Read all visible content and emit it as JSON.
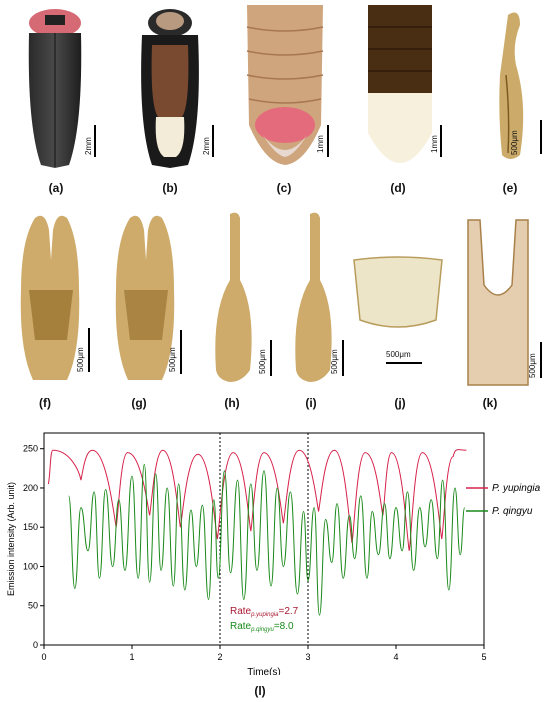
{
  "panels": {
    "a": {
      "label": "(a)",
      "scale": "2mm"
    },
    "b": {
      "label": "(b)",
      "scale": "2mm"
    },
    "c": {
      "label": "(c)",
      "scale": "1mm"
    },
    "d": {
      "label": "(d)",
      "scale": "1mm"
    },
    "e": {
      "label": "(e)",
      "scale": "500μm"
    },
    "f": {
      "label": "(f)",
      "scale": "500μm"
    },
    "g": {
      "label": "(g)",
      "scale": "500μm"
    },
    "h": {
      "label": "(h)",
      "scale": "500μm"
    },
    "i": {
      "label": "(i)",
      "scale": "500μm"
    },
    "j": {
      "label": "(j)",
      "scale": "500μm"
    },
    "k": {
      "label": "(k)",
      "scale": "500μm"
    },
    "l": {
      "label": "(l)"
    }
  },
  "colors": {
    "yupingia": "#d6224a",
    "qingyu": "#1a8a1a"
  },
  "chart_data": {
    "type": "line",
    "xlabel": "Time(s)",
    "ylabel": "Emission intensity (Arb. unit)",
    "xlim": [
      0,
      5
    ],
    "ylim": [
      0,
      270
    ],
    "xticks": [
      0,
      1,
      2,
      3,
      4,
      5
    ],
    "yticks": [
      0,
      50,
      100,
      150,
      200,
      250
    ],
    "vlines": [
      2,
      3
    ],
    "legend": "right",
    "series": [
      {
        "name": "P. yupingia",
        "legend_italic": "P. yupingia",
        "color": "#d6224a",
        "peak_times": [
          0.1,
          0.55,
          0.95,
          1.35,
          1.75,
          2.15,
          2.5,
          2.9,
          3.3,
          3.65,
          3.95,
          4.3,
          4.65,
          4.8
        ],
        "min_times": [
          0.42,
          0.82,
          1.2,
          1.55,
          1.97,
          2.35,
          2.72,
          3.12,
          3.5,
          3.85,
          4.15,
          4.52
        ],
        "min_values": [
          210,
          150,
          165,
          150,
          135,
          145,
          155,
          170,
          130,
          165,
          120,
          135
        ],
        "peak_values": [
          248,
          248,
          245,
          248,
          243,
          245,
          245,
          248,
          248,
          245,
          245,
          245,
          240,
          248
        ],
        "start": [
          0.05,
          205
        ],
        "end": [
          4.8,
          248
        ]
      },
      {
        "name": "P. qingyu",
        "legend_italic": "P. qingyu",
        "color": "#1a8a1a",
        "x": [
          0.28,
          0.35,
          0.42,
          0.5,
          0.57,
          0.63,
          0.7,
          0.78,
          0.85,
          0.92,
          1.0,
          1.07,
          1.14,
          1.2,
          1.27,
          1.33,
          1.4,
          1.47,
          1.53,
          1.6,
          1.67,
          1.73,
          1.8,
          1.87,
          1.93,
          1.98,
          2.05,
          2.12,
          2.2,
          2.27,
          2.35,
          2.42,
          2.5,
          2.58,
          2.65,
          2.72,
          2.8,
          2.88,
          2.95,
          3.0,
          3.07,
          3.13,
          3.2,
          3.27,
          3.33,
          3.4,
          3.47,
          3.53,
          3.6,
          3.67,
          3.73,
          3.8,
          3.87,
          3.93,
          4.0,
          4.07,
          4.13,
          4.2,
          4.27,
          4.33,
          4.4,
          4.47,
          4.53,
          4.6,
          4.67,
          4.73,
          4.78
        ],
        "y": [
          190,
          72,
          175,
          120,
          195,
          85,
          198,
          100,
          185,
          95,
          215,
          85,
          230,
          80,
          218,
          95,
          200,
          75,
          205,
          70,
          172,
          100,
          178,
          58,
          185,
          85,
          222,
          92,
          210,
          58,
          205,
          95,
          222,
          75,
          200,
          100,
          195,
          65,
          170,
          82,
          175,
          38,
          160,
          105,
          180,
          85,
          165,
          110,
          190,
          85,
          170,
          115,
          180,
          110,
          175,
          120,
          195,
          95,
          175,
          125,
          185,
          110,
          210,
          70,
          200,
          115,
          175
        ]
      }
    ],
    "annotation": {
      "line1": "Rate",
      "sub1": "p.yupingia",
      "val1": "=2.7",
      "line2": "Rate",
      "sub2": "p.qingyu",
      "val2": "=8.0"
    }
  }
}
